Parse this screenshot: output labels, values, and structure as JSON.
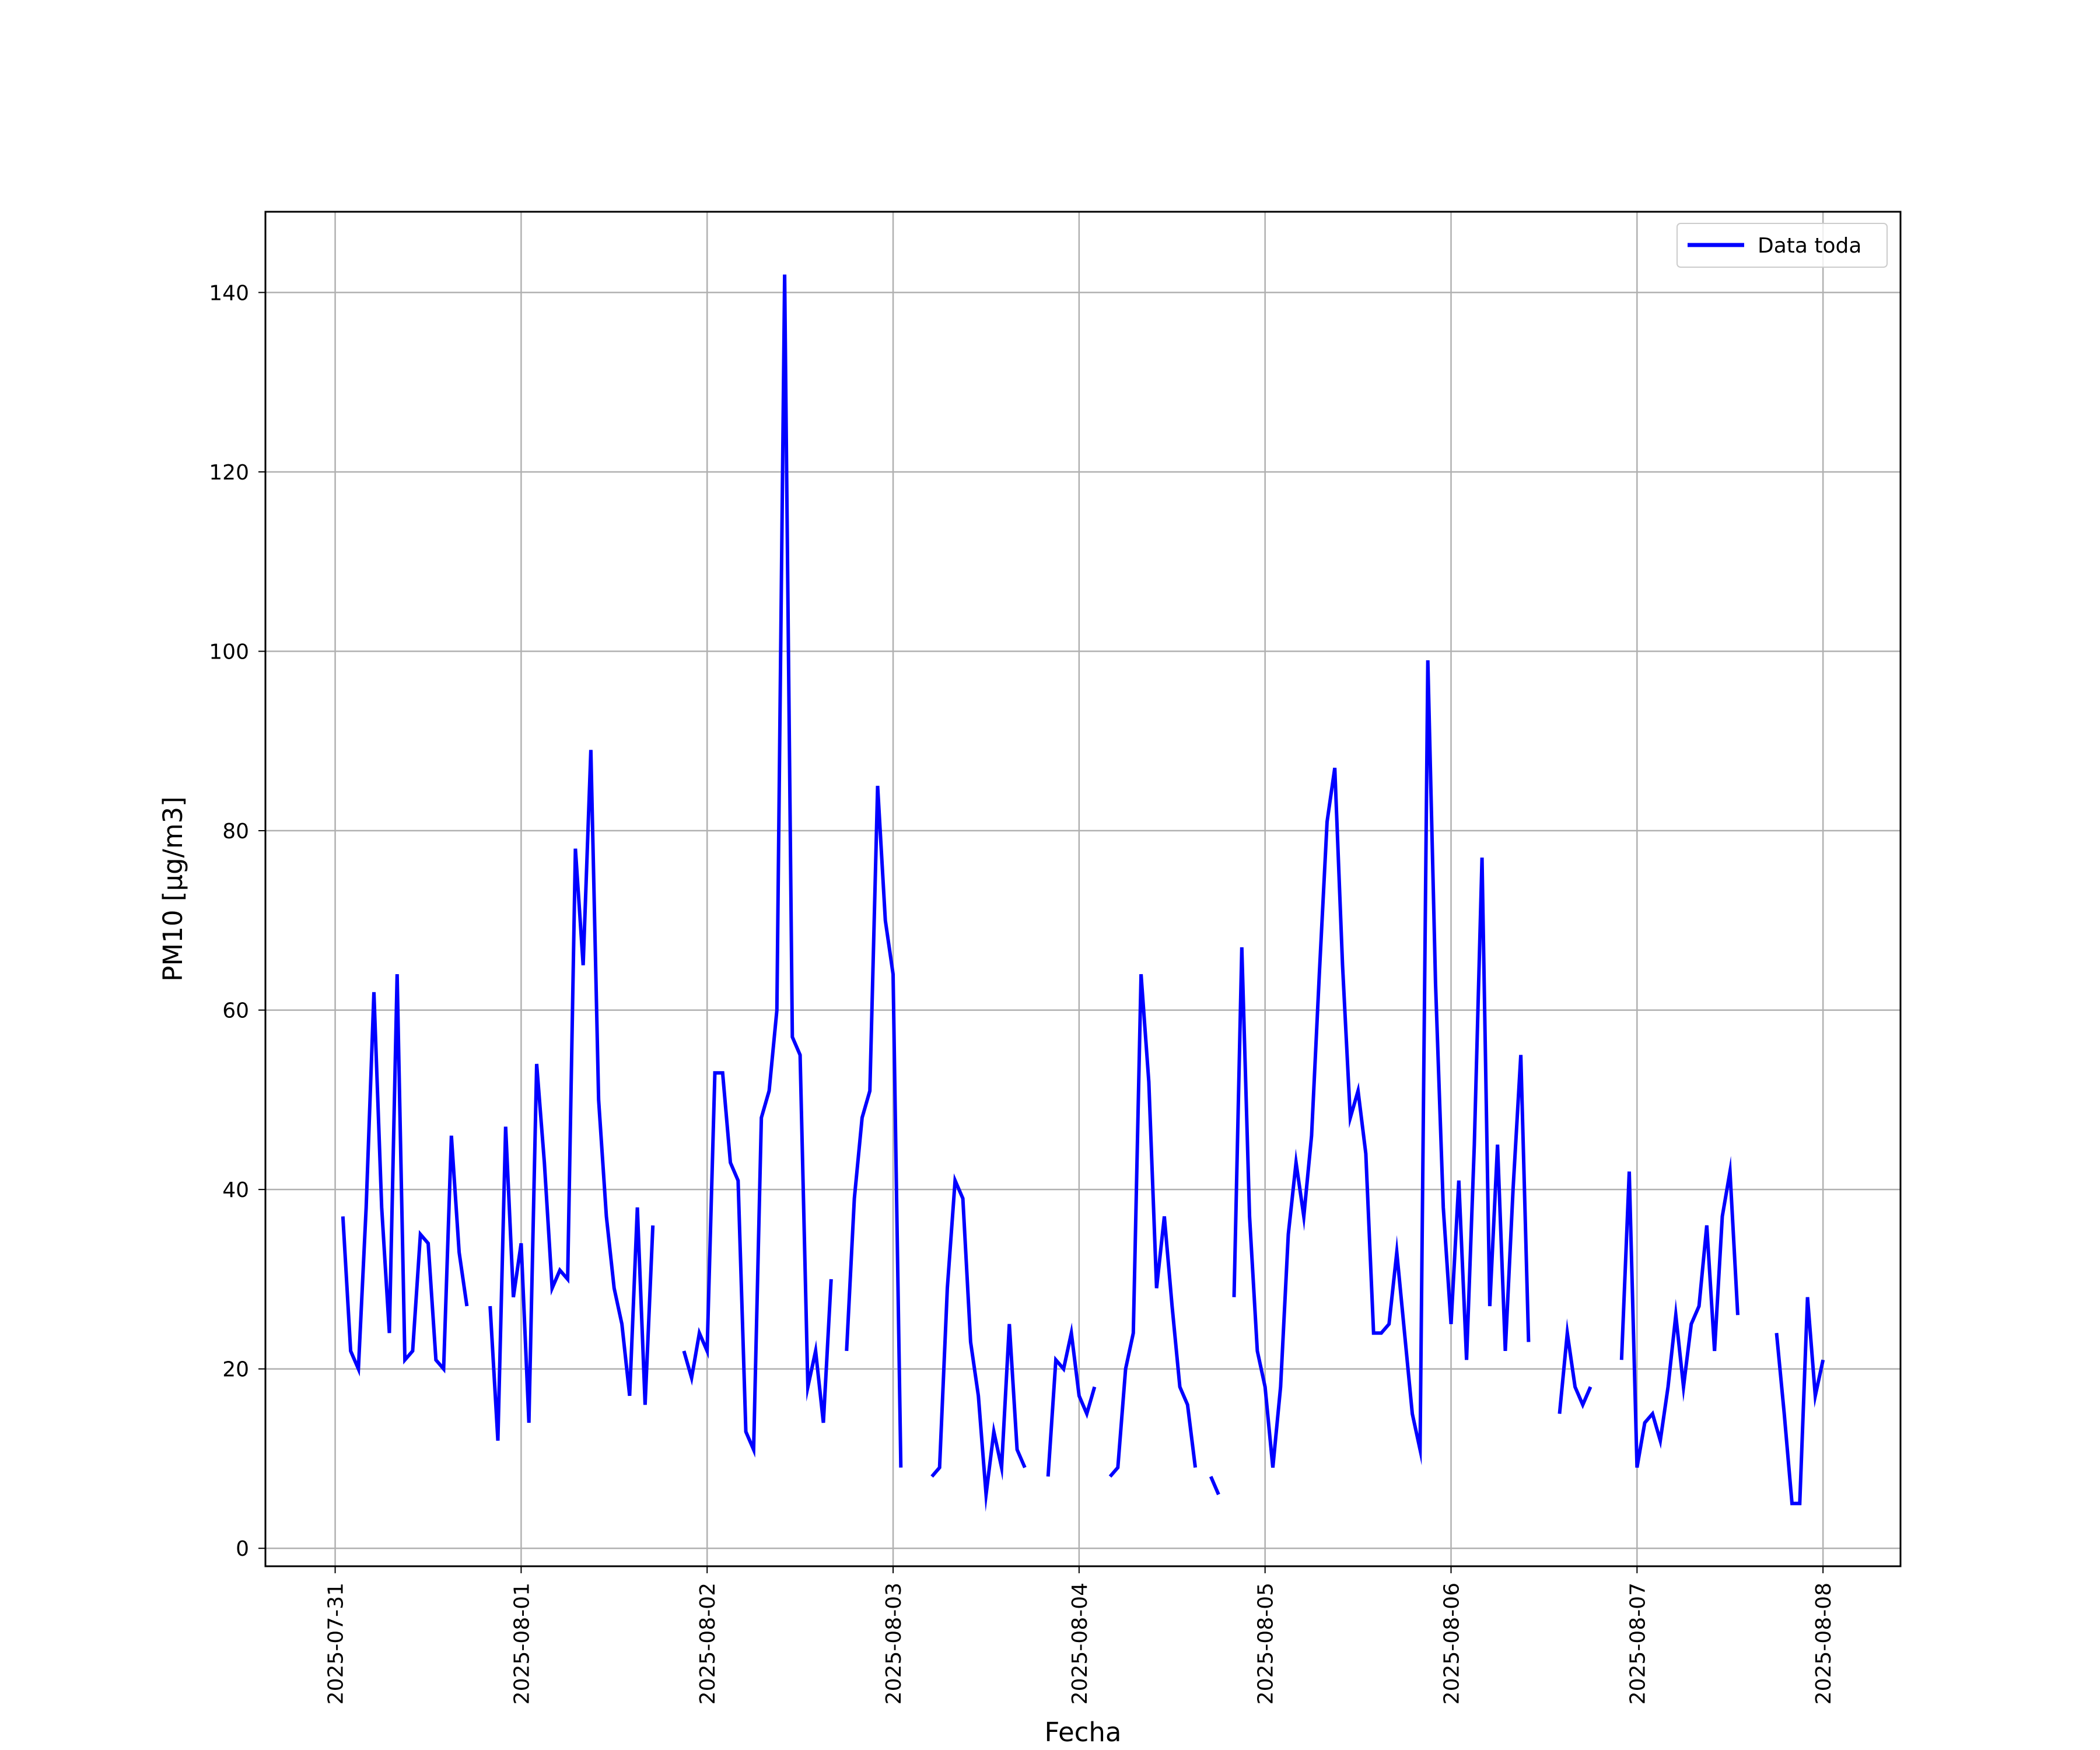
{
  "chart_data": {
    "type": "line",
    "title": "",
    "xlabel": "Fecha",
    "ylabel": "PM10 [μg/m3]",
    "ylim": [
      -2,
      149
    ],
    "xlim": [
      "2025-07-30T15:00",
      "2025-08-08T10:00"
    ],
    "grid": true,
    "legend": {
      "placement": "top-right",
      "entries": [
        "Data toda"
      ]
    },
    "line_color": "#0000ff",
    "x_ticks": [
      "2025-07-31",
      "2025-08-01",
      "2025-08-02",
      "2025-08-03",
      "2025-08-04",
      "2025-08-05",
      "2025-08-06",
      "2025-08-07",
      "2025-08-08"
    ],
    "y_ticks": [
      0,
      20,
      40,
      60,
      80,
      100,
      120,
      140
    ],
    "series": [
      {
        "name": "Data toda",
        "color": "#0000ff",
        "segments": [
          [
            [
              "2025-07-31T01:00",
              37
            ],
            [
              "2025-07-31T02:00",
              22
            ],
            [
              "2025-07-31T03:00",
              20
            ],
            [
              "2025-07-31T04:00",
              38
            ],
            [
              "2025-07-31T05:00",
              62
            ],
            [
              "2025-07-31T06:00",
              38
            ],
            [
              "2025-07-31T07:00",
              24
            ],
            [
              "2025-07-31T08:00",
              64
            ],
            [
              "2025-07-31T09:00",
              21
            ],
            [
              "2025-07-31T10:00",
              22
            ],
            [
              "2025-07-31T11:00",
              35
            ],
            [
              "2025-07-31T12:00",
              34
            ],
            [
              "2025-07-31T13:00",
              21
            ],
            [
              "2025-07-31T14:00",
              20
            ],
            [
              "2025-07-31T15:00",
              46
            ],
            [
              "2025-07-31T16:00",
              33
            ],
            [
              "2025-07-31T17:00",
              27
            ]
          ],
          [
            [
              "2025-07-31T20:00",
              27
            ],
            [
              "2025-07-31T21:00",
              12
            ],
            [
              "2025-07-31T22:00",
              47
            ],
            [
              "2025-07-31T23:00",
              28
            ],
            [
              "2025-08-01T00:00",
              34
            ],
            [
              "2025-08-01T01:00",
              14
            ],
            [
              "2025-08-01T02:00",
              54
            ],
            [
              "2025-08-01T03:00",
              43
            ],
            [
              "2025-08-01T04:00",
              29
            ],
            [
              "2025-08-01T05:00",
              31
            ],
            [
              "2025-08-01T06:00",
              30
            ],
            [
              "2025-08-01T07:00",
              78
            ],
            [
              "2025-08-01T08:00",
              65
            ],
            [
              "2025-08-01T09:00",
              89
            ],
            [
              "2025-08-01T10:00",
              50
            ],
            [
              "2025-08-01T11:00",
              37
            ],
            [
              "2025-08-01T12:00",
              29
            ],
            [
              "2025-08-01T13:00",
              25
            ],
            [
              "2025-08-01T14:00",
              17
            ],
            [
              "2025-08-01T15:00",
              38
            ],
            [
              "2025-08-01T16:00",
              16
            ],
            [
              "2025-08-01T17:00",
              36
            ]
          ],
          [
            [
              "2025-08-01T21:00",
              22
            ],
            [
              "2025-08-01T22:00",
              19
            ],
            [
              "2025-08-01T23:00",
              24
            ],
            [
              "2025-08-02T00:00",
              22
            ],
            [
              "2025-08-02T01:00",
              53
            ],
            [
              "2025-08-02T02:00",
              53
            ],
            [
              "2025-08-02T03:00",
              43
            ],
            [
              "2025-08-02T04:00",
              41
            ],
            [
              "2025-08-02T05:00",
              13
            ],
            [
              "2025-08-02T06:00",
              11
            ],
            [
              "2025-08-02T07:00",
              48
            ],
            [
              "2025-08-02T08:00",
              51
            ],
            [
              "2025-08-02T09:00",
              60
            ],
            [
              "2025-08-02T10:00",
              142
            ],
            [
              "2025-08-02T11:00",
              57
            ],
            [
              "2025-08-02T12:00",
              55
            ],
            [
              "2025-08-02T13:00",
              18
            ],
            [
              "2025-08-02T14:00",
              22
            ],
            [
              "2025-08-02T15:00",
              14
            ],
            [
              "2025-08-02T16:00",
              30
            ]
          ],
          [
            [
              "2025-08-02T18:00",
              22
            ],
            [
              "2025-08-02T19:00",
              39
            ],
            [
              "2025-08-02T20:00",
              48
            ],
            [
              "2025-08-02T21:00",
              51
            ],
            [
              "2025-08-02T22:00",
              85
            ],
            [
              "2025-08-02T23:00",
              70
            ],
            [
              "2025-08-03T00:00",
              64
            ],
            [
              "2025-08-03T01:00",
              9
            ]
          ],
          [
            [
              "2025-08-03T05:00",
              8
            ],
            [
              "2025-08-03T06:00",
              9
            ],
            [
              "2025-08-03T07:00",
              29
            ],
            [
              "2025-08-03T08:00",
              41
            ],
            [
              "2025-08-03T09:00",
              39
            ],
            [
              "2025-08-03T10:00",
              23
            ],
            [
              "2025-08-03T11:00",
              17
            ],
            [
              "2025-08-03T12:00",
              6
            ],
            [
              "2025-08-03T13:00",
              13
            ],
            [
              "2025-08-03T14:00",
              9
            ],
            [
              "2025-08-03T15:00",
              25
            ],
            [
              "2025-08-03T16:00",
              11
            ],
            [
              "2025-08-03T17:00",
              9
            ]
          ],
          [
            [
              "2025-08-03T20:00",
              8
            ],
            [
              "2025-08-03T21:00",
              21
            ],
            [
              "2025-08-03T22:00",
              20
            ],
            [
              "2025-08-03T23:00",
              24
            ],
            [
              "2025-08-04T00:00",
              17
            ],
            [
              "2025-08-04T01:00",
              15
            ],
            [
              "2025-08-04T02:00",
              18
            ]
          ],
          [
            [
              "2025-08-04T04:00",
              8
            ],
            [
              "2025-08-04T05:00",
              9
            ],
            [
              "2025-08-04T06:00",
              20
            ],
            [
              "2025-08-04T07:00",
              24
            ],
            [
              "2025-08-04T08:00",
              64
            ],
            [
              "2025-08-04T09:00",
              52
            ],
            [
              "2025-08-04T10:00",
              29
            ],
            [
              "2025-08-04T11:00",
              37
            ],
            [
              "2025-08-04T12:00",
              27
            ],
            [
              "2025-08-04T13:00",
              18
            ],
            [
              "2025-08-04T14:00",
              16
            ],
            [
              "2025-08-04T15:00",
              9
            ]
          ],
          [
            [
              "2025-08-04T17:00",
              8
            ],
            [
              "2025-08-04T18:00",
              6
            ]
          ],
          [
            [
              "2025-08-04T20:00",
              28
            ],
            [
              "2025-08-04T21:00",
              67
            ],
            [
              "2025-08-04T22:00",
              37
            ],
            [
              "2025-08-04T23:00",
              22
            ],
            [
              "2025-08-05T00:00",
              18
            ],
            [
              "2025-08-05T01:00",
              9
            ],
            [
              "2025-08-05T02:00",
              18
            ],
            [
              "2025-08-05T03:00",
              35
            ],
            [
              "2025-08-05T04:00",
              43
            ],
            [
              "2025-08-05T05:00",
              37
            ],
            [
              "2025-08-05T06:00",
              46
            ],
            [
              "2025-08-05T07:00",
              64
            ],
            [
              "2025-08-05T08:00",
              81
            ],
            [
              "2025-08-05T09:00",
              87
            ],
            [
              "2025-08-05T10:00",
              65
            ],
            [
              "2025-08-05T11:00",
              48
            ],
            [
              "2025-08-05T12:00",
              51
            ],
            [
              "2025-08-05T13:00",
              44
            ],
            [
              "2025-08-05T14:00",
              24
            ],
            [
              "2025-08-05T15:00",
              24
            ],
            [
              "2025-08-05T16:00",
              25
            ],
            [
              "2025-08-05T17:00",
              33
            ],
            [
              "2025-08-05T18:00",
              24
            ],
            [
              "2025-08-05T19:00",
              15
            ],
            [
              "2025-08-05T20:00",
              11
            ],
            [
              "2025-08-05T21:00",
              99
            ],
            [
              "2025-08-05T22:00",
              63
            ],
            [
              "2025-08-05T23:00",
              38
            ],
            [
              "2025-08-06T00:00",
              25
            ],
            [
              "2025-08-06T01:00",
              41
            ],
            [
              "2025-08-06T02:00",
              21
            ],
            [
              "2025-08-06T03:00",
              45
            ],
            [
              "2025-08-06T04:00",
              77
            ],
            [
              "2025-08-06T05:00",
              27
            ],
            [
              "2025-08-06T06:00",
              45
            ],
            [
              "2025-08-06T07:00",
              22
            ],
            [
              "2025-08-06T08:00",
              40
            ],
            [
              "2025-08-06T09:00",
              55
            ],
            [
              "2025-08-06T10:00",
              23
            ]
          ],
          [
            [
              "2025-08-06T14:00",
              15
            ],
            [
              "2025-08-06T15:00",
              24
            ],
            [
              "2025-08-06T16:00",
              18
            ],
            [
              "2025-08-06T17:00",
              16
            ],
            [
              "2025-08-06T18:00",
              18
            ]
          ],
          [
            [
              "2025-08-06T22:00",
              21
            ],
            [
              "2025-08-06T23:00",
              42
            ],
            [
              "2025-08-07T00:00",
              9
            ],
            [
              "2025-08-07T01:00",
              14
            ],
            [
              "2025-08-07T02:00",
              15
            ],
            [
              "2025-08-07T03:00",
              12
            ],
            [
              "2025-08-07T04:00",
              18
            ],
            [
              "2025-08-07T05:00",
              26
            ],
            [
              "2025-08-07T06:00",
              18
            ],
            [
              "2025-08-07T07:00",
              25
            ],
            [
              "2025-08-07T08:00",
              27
            ],
            [
              "2025-08-07T09:00",
              36
            ],
            [
              "2025-08-07T10:00",
              22
            ],
            [
              "2025-08-07T11:00",
              37
            ],
            [
              "2025-08-07T12:00",
              42
            ],
            [
              "2025-08-07T13:00",
              26
            ]
          ],
          [
            [
              "2025-08-07T18:00",
              24
            ],
            [
              "2025-08-07T19:00",
              15
            ],
            [
              "2025-08-07T20:00",
              5
            ],
            [
              "2025-08-07T21:00",
              5
            ],
            [
              "2025-08-07T22:00",
              28
            ],
            [
              "2025-08-07T23:00",
              17
            ],
            [
              "2025-08-08T00:00",
              21
            ]
          ]
        ]
      }
    ]
  }
}
